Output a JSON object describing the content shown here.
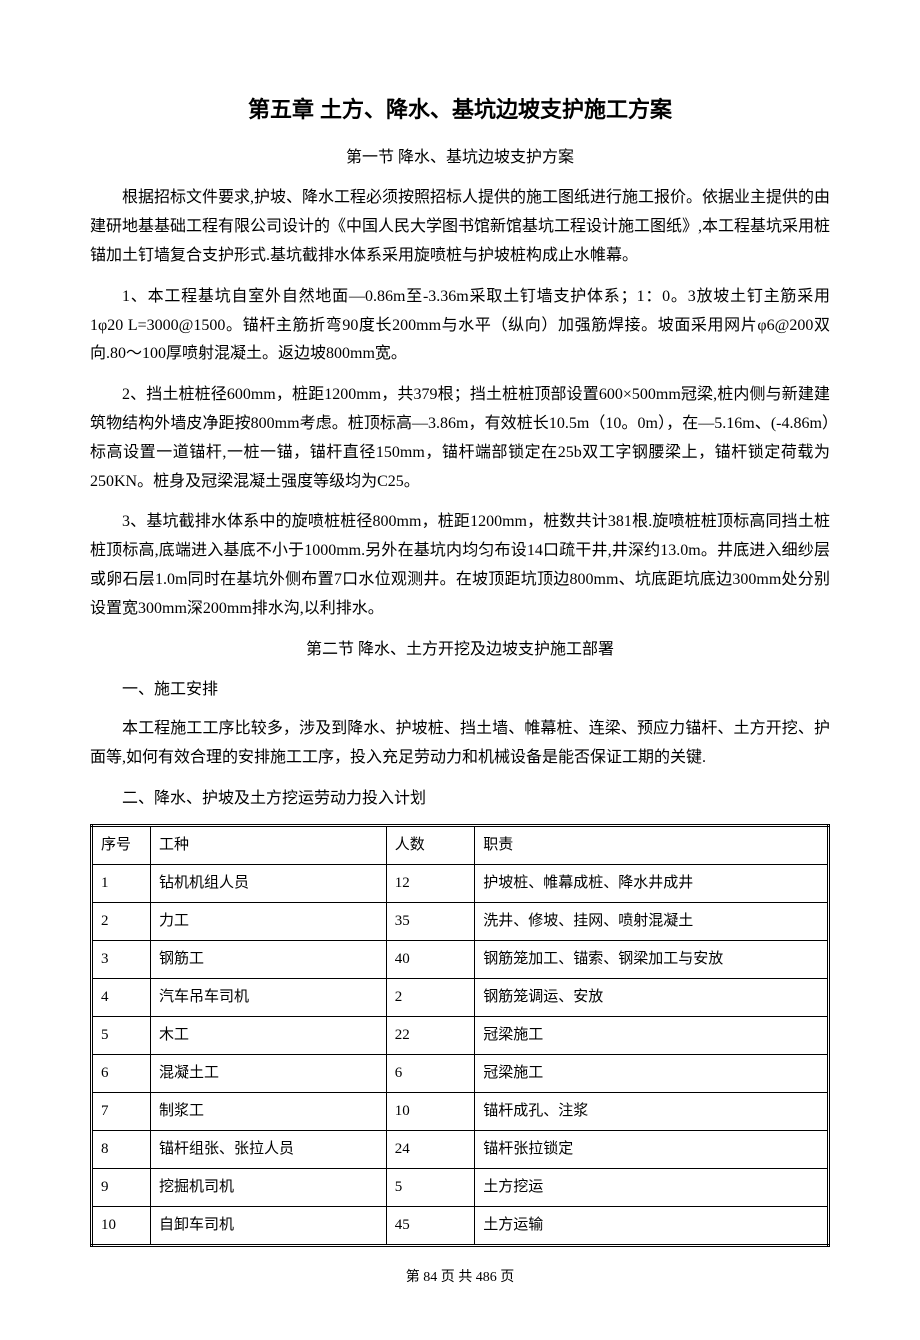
{
  "chapter_title": "第五章 土方、降水、基坑边坡支护施工方案",
  "section1_title": "第一节 降水、基坑边坡支护方案",
  "para1": "根据招标文件要求,护坡、降水工程必须按照招标人提供的施工图纸进行施工报价。依据业主提供的由建研地基基础工程有限公司设计的《中国人民大学图书馆新馆基坑工程设计施工图纸》,本工程基坑采用桩锚加土钉墙复合支护形式.基坑截排水体系采用旋喷桩与护坡桩构成止水帷幕。",
  "para2": "1、本工程基坑自室外自然地面—0.86m至-3.36m采取土钉墙支护体系；1：0。3放坡土钉主筋采用1φ20  L=3000@1500。锚杆主筋折弯90度长200mm与水平（纵向）加强筋焊接。坡面采用网片φ6@200双向.80～100厚喷射混凝土。返边坡800mm宽。",
  "para3": "2、挡土桩桩径600mm，桩距1200mm，共379根；挡土桩桩顶部设置600×500mm冠梁,桩内侧与新建建筑物结构外墙皮净距按800mm考虑。桩顶标高—3.86m，有效桩长10.5m（10。0m），在—5.16m、(-4.86m）标高设置一道锚杆,一桩一锚，锚杆直径150mm，锚杆端部锁定在25b双工字钢腰梁上，锚杆锁定荷载为250KN。桩身及冠梁混凝土强度等级均为C25。",
  "para4": "3、基坑截排水体系中的旋喷桩桩径800mm，桩距1200mm，桩数共计381根.旋喷桩桩顶标高同挡土桩桩顶标高,底端进入基底不小于1000mm.另外在基坑内均匀布设14口疏干井,井深约13.0m。井底进入细纱层或卵石层1.0m同时在基坑外侧布置7口水位观测井。在坡顶距坑顶边800mm、坑底距坑底边300mm处分别设置宽300mm深200mm排水沟,以利排水。",
  "section2_title": "第二节 降水、土方开挖及边坡支护施工部署",
  "sub1": "一、施工安排",
  "para5": "本工程施工工序比较多，涉及到降水、护坡桩、挡土墙、帷幕桩、连梁、预应力锚杆、土方开挖、护面等,如何有效合理的安排施工工序，投入充足劳动力和机械设备是能否保证工期的关键.",
  "sub2": "二、降水、护坡及土方挖运劳动力投入计划",
  "table": {
    "headers": [
      "序号",
      "工种",
      "人数",
      "职责"
    ],
    "rows": [
      [
        "1",
        "钻机机组人员",
        "12",
        "护坡桩、帷幕成桩、降水井成井"
      ],
      [
        "2",
        "力工",
        "35",
        "洗井、修坡、挂网、喷射混凝土"
      ],
      [
        "3",
        "钢筋工",
        "40",
        "钢筋笼加工、锚索、钢梁加工与安放"
      ],
      [
        "4",
        "汽车吊车司机",
        "2",
        "钢筋笼调运、安放"
      ],
      [
        "5",
        "木工",
        "22",
        "冠梁施工"
      ],
      [
        "6",
        "混凝土工",
        "6",
        "冠梁施工"
      ],
      [
        "7",
        "制浆工",
        "10",
        "锚杆成孔、注浆"
      ],
      [
        "8",
        "锚杆组张、张拉人员",
        "24",
        "锚杆张拉锁定"
      ],
      [
        "9",
        "挖掘机司机",
        "5",
        "土方挖运"
      ],
      [
        "10",
        "自卸车司机",
        "45",
        "土方运输"
      ]
    ]
  },
  "footer": "第 84 页 共 486 页"
}
